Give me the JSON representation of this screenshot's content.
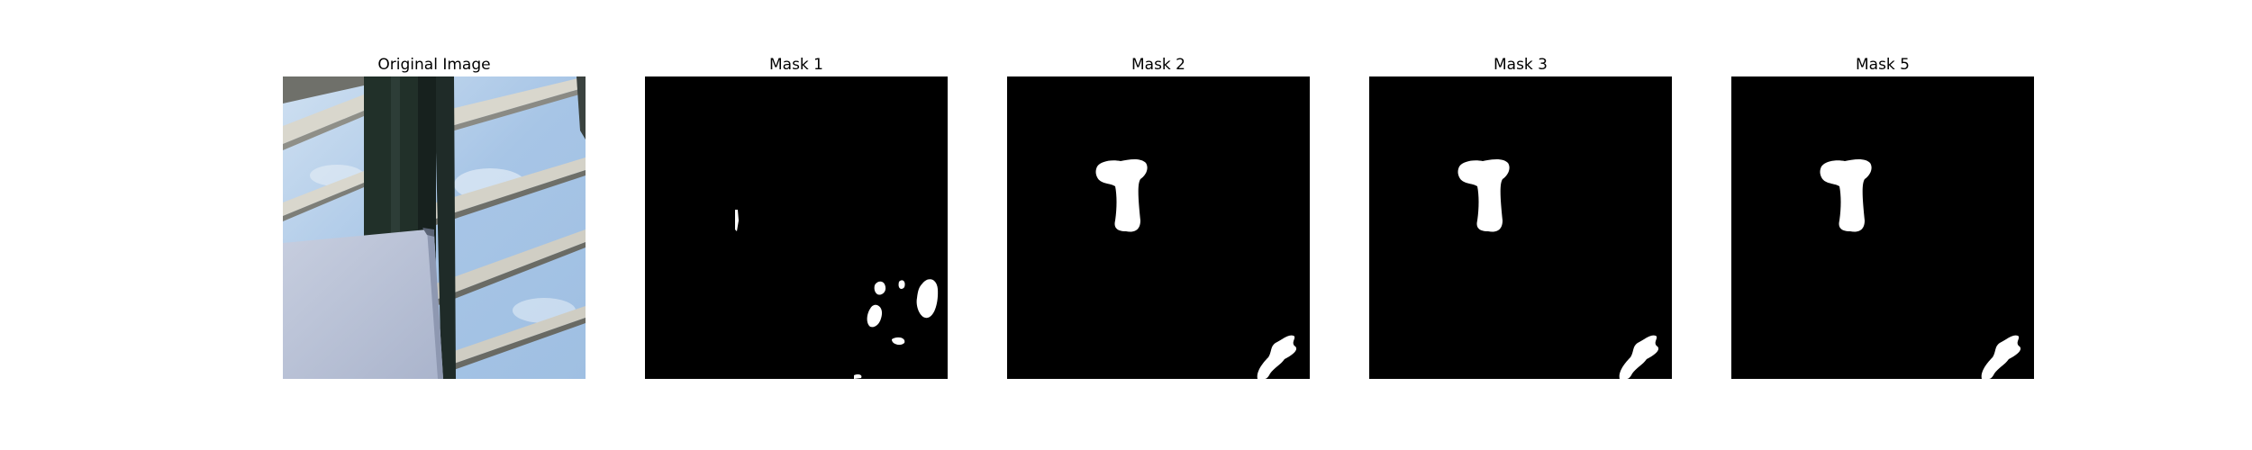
{
  "figure": {
    "panels": [
      {
        "title": "Original Image",
        "kind": "photo"
      },
      {
        "title": "Mask 1",
        "kind": "mask",
        "mask_variant": "scattered"
      },
      {
        "title": "Mask 2",
        "kind": "mask",
        "mask_variant": "t-shape"
      },
      {
        "title": "Mask 3",
        "kind": "mask",
        "mask_variant": "t-shape"
      },
      {
        "title": "Mask 5",
        "kind": "mask",
        "mask_variant": "t-shape"
      }
    ]
  },
  "colors": {
    "mask_background": "#000000",
    "mask_foreground": "#ffffff",
    "sky": "#a9c7e6",
    "sky_light": "#d4e4f2",
    "beam": "#1c2a26",
    "frame_light": "#d8d6cc",
    "wall": "#b9c2d8"
  }
}
